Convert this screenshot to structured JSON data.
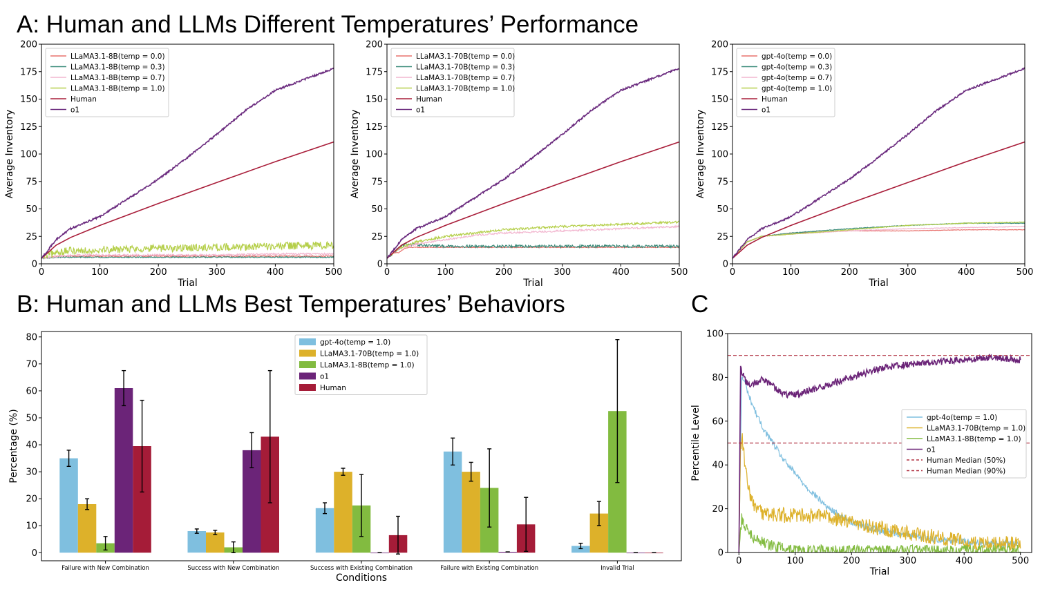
{
  "headings": {
    "a": "A: Human and LLMs Different Temperatures’ Performance",
    "b": "B: Human and LLMs Best Temperatures’ Behaviors",
    "c": "C"
  },
  "chart_data": [
    {
      "type": "line",
      "panel": "A-left",
      "xlabel": "Trial",
      "ylabel": "Average Inventory",
      "xlim": [
        0,
        500
      ],
      "ylim": [
        0,
        200
      ],
      "xticks": [
        0,
        100,
        200,
        300,
        400,
        500
      ],
      "yticks": [
        0,
        25,
        50,
        75,
        100,
        125,
        150,
        175,
        200
      ],
      "legend_position": "top-left",
      "series": [
        {
          "name": "LLaMA3.1-8B(temp = 0.0)",
          "color": "#e8706c",
          "x": [
            0,
            30,
            60,
            100,
            200,
            300,
            400,
            500
          ],
          "y": [
            5,
            7,
            7,
            7,
            7,
            7,
            7,
            7
          ],
          "noise": 0.5
        },
        {
          "name": "LLaMA3.1-8B(temp = 0.3)",
          "color": "#3b8c7a",
          "x": [
            0,
            30,
            60,
            100,
            200,
            300,
            400,
            500
          ],
          "y": [
            5,
            6,
            6,
            6,
            6,
            6,
            6,
            6
          ],
          "noise": 0.5
        },
        {
          "name": "LLaMA3.1-8B(temp = 0.7)",
          "color": "#f2b6cf",
          "x": [
            0,
            30,
            60,
            100,
            200,
            300,
            400,
            500
          ],
          "y": [
            5,
            7,
            8,
            8,
            8,
            8,
            9,
            9
          ],
          "noise": 0.8
        },
        {
          "name": "LLaMA3.1-8B(temp = 1.0)",
          "color": "#b5cf4a",
          "x": [
            0,
            30,
            60,
            100,
            200,
            300,
            400,
            500
          ],
          "y": [
            5,
            11,
            12,
            13,
            14,
            15,
            16,
            17
          ],
          "noise": 3.5
        },
        {
          "name": "Human",
          "color": "#a91e3a",
          "x": [
            0,
            25,
            50,
            100,
            200,
            300,
            400,
            500
          ],
          "y": [
            5,
            17,
            24,
            35,
            55,
            74,
            93,
            111
          ],
          "noise": 0
        },
        {
          "name": "o1",
          "color": "#6a2a7e",
          "x": [
            0,
            25,
            50,
            100,
            150,
            200,
            250,
            300,
            350,
            400,
            450,
            500
          ],
          "y": [
            5,
            22,
            32,
            43,
            60,
            77,
            97,
            118,
            140,
            158,
            168,
            178
          ],
          "noise": 0.8
        }
      ]
    },
    {
      "type": "line",
      "panel": "A-middle",
      "xlabel": "Trial",
      "ylabel": "Average Inventory",
      "xlim": [
        0,
        500
      ],
      "ylim": [
        0,
        200
      ],
      "xticks": [
        0,
        100,
        200,
        300,
        400,
        500
      ],
      "yticks": [
        0,
        25,
        50,
        75,
        100,
        125,
        150,
        175,
        200
      ],
      "legend_position": "top-left",
      "series": [
        {
          "name": "LLaMA3.1-70B(temp = 0.0)",
          "color": "#e8706c",
          "x": [
            0,
            10,
            20,
            30,
            40,
            100,
            200,
            300,
            400,
            500
          ],
          "y": [
            5,
            10,
            10,
            14,
            15,
            15,
            15,
            15,
            15,
            15
          ],
          "noise": 0.3
        },
        {
          "name": "LLaMA3.1-70B(temp = 0.3)",
          "color": "#3b8c7a",
          "x": [
            0,
            20,
            30,
            60,
            100,
            200,
            300,
            400,
            500
          ],
          "y": [
            5,
            14,
            18,
            17,
            16,
            16,
            16,
            16,
            16
          ],
          "noise": 1.2
        },
        {
          "name": "LLaMA3.1-70B(temp = 0.7)",
          "color": "#f2b6cf",
          "x": [
            0,
            20,
            50,
            100,
            150,
            200,
            300,
            400,
            500
          ],
          "y": [
            5,
            14,
            18,
            22,
            26,
            28,
            30,
            32,
            34
          ],
          "noise": 0.8
        },
        {
          "name": "LLaMA3.1-70B(temp = 1.0)",
          "color": "#b5cf4a",
          "x": [
            0,
            20,
            50,
            100,
            150,
            200,
            300,
            400,
            500
          ],
          "y": [
            5,
            14,
            20,
            25,
            28,
            31,
            34,
            36,
            38
          ],
          "noise": 1.0
        },
        {
          "name": "Human",
          "color": "#a91e3a",
          "x": [
            0,
            25,
            50,
            100,
            200,
            300,
            400,
            500
          ],
          "y": [
            5,
            17,
            24,
            35,
            55,
            74,
            93,
            111
          ],
          "noise": 0
        },
        {
          "name": "o1",
          "color": "#6a2a7e",
          "x": [
            0,
            25,
            50,
            100,
            150,
            200,
            250,
            300,
            350,
            400,
            450,
            500
          ],
          "y": [
            5,
            22,
            32,
            43,
            60,
            77,
            97,
            118,
            140,
            158,
            168,
            178
          ],
          "noise": 0.8
        }
      ]
    },
    {
      "type": "line",
      "panel": "A-right",
      "xlabel": "Trial",
      "ylabel": "Average Inventory",
      "xlim": [
        0,
        500
      ],
      "ylim": [
        0,
        200
      ],
      "xticks": [
        0,
        100,
        200,
        300,
        400,
        500
      ],
      "yticks": [
        0,
        25,
        50,
        75,
        100,
        125,
        150,
        175,
        200
      ],
      "legend_position": "top-left",
      "series": [
        {
          "name": "gpt-4o(temp = 0.0)",
          "color": "#e8706c",
          "x": [
            0,
            25,
            50,
            100,
            200,
            300,
            400,
            500
          ],
          "y": [
            5,
            20,
            25,
            28,
            30,
            30,
            31,
            31
          ],
          "noise": 0.2
        },
        {
          "name": "gpt-4o(temp = 0.3)",
          "color": "#3b8c7a",
          "x": [
            0,
            25,
            50,
            100,
            200,
            300,
            400,
            500
          ],
          "y": [
            5,
            20,
            25,
            28,
            32,
            35,
            37,
            37
          ],
          "noise": 0.3
        },
        {
          "name": "gpt-4o(temp = 0.7)",
          "color": "#f2b6cf",
          "x": [
            0,
            25,
            50,
            100,
            200,
            300,
            400,
            500
          ],
          "y": [
            5,
            20,
            25,
            27,
            30,
            32,
            33,
            34
          ],
          "noise": 0.3
        },
        {
          "name": "gpt-4o(temp = 1.0)",
          "color": "#b5cf4a",
          "x": [
            0,
            25,
            50,
            100,
            200,
            300,
            400,
            500
          ],
          "y": [
            5,
            20,
            25,
            27,
            31,
            35,
            37,
            38
          ],
          "noise": 0.3
        },
        {
          "name": "Human",
          "color": "#a91e3a",
          "x": [
            0,
            25,
            50,
            100,
            200,
            300,
            400,
            500
          ],
          "y": [
            5,
            17,
            24,
            35,
            55,
            74,
            93,
            111
          ],
          "noise": 0
        },
        {
          "name": "o1",
          "color": "#6a2a7e",
          "x": [
            0,
            25,
            50,
            100,
            150,
            200,
            250,
            300,
            350,
            400,
            450,
            500
          ],
          "y": [
            5,
            22,
            32,
            43,
            60,
            77,
            97,
            118,
            140,
            158,
            168,
            178
          ],
          "noise": 0.8
        }
      ]
    },
    {
      "type": "bar",
      "panel": "B",
      "xlabel": "Conditions",
      "ylabel": "Percentage (%)",
      "ylim": [
        -3,
        82
      ],
      "yticks": [
        0,
        10,
        20,
        30,
        40,
        50,
        60,
        70,
        80
      ],
      "legend_position": "top-center",
      "categories": [
        "Failure with New Combination",
        "Success with New Combination",
        "Success with Existing Combination",
        "Failure with Existing Combination",
        "Invalid Trial"
      ],
      "series": [
        {
          "name": "gpt-4o(temp = 1.0)",
          "color": "#7fbfdf",
          "values": [
            35,
            8,
            16.5,
            37.5,
            2.5
          ],
          "errors": [
            3,
            0.8,
            2,
            5,
            1
          ]
        },
        {
          "name": "LLaMA3.1-70B(temp = 1.0)",
          "color": "#ddb12a",
          "values": [
            18,
            7.5,
            30,
            30,
            14.5
          ],
          "errors": [
            2,
            0.8,
            1.3,
            3.5,
            4.5
          ]
        },
        {
          "name": "LLaMA3.1-8B(temp = 1.0)",
          "color": "#82bb40",
          "values": [
            3.5,
            2,
            17.5,
            24,
            52.5
          ],
          "errors": [
            2.5,
            2,
            11.5,
            14.5,
            26.5
          ]
        },
        {
          "name": "o1",
          "color": "#6b2478",
          "values": [
            61,
            38,
            0,
            0.3,
            0
          ],
          "errors": [
            6.5,
            6.5,
            0,
            0,
            0
          ]
        },
        {
          "name": "Human",
          "color": "#a51c38",
          "values": [
            39.5,
            43,
            6.5,
            10.5,
            0
          ],
          "errors": [
            17,
            24.5,
            7,
            10,
            0
          ]
        }
      ]
    },
    {
      "type": "line",
      "panel": "C",
      "xlabel": "Trial",
      "ylabel": "Percentile Level",
      "xlim": [
        -20,
        520
      ],
      "ylim": [
        0,
        100
      ],
      "xticks": [
        0,
        100,
        200,
        300,
        400,
        500
      ],
      "yticks": [
        0,
        20,
        40,
        60,
        80,
        100
      ],
      "legend_position": "center-right",
      "series": [
        {
          "name": "gpt-4o(temp = 1.0)",
          "color": "#7fbfdf",
          "style": "solid",
          "x": [
            0,
            5,
            10,
            20,
            40,
            80,
            120,
            160,
            200,
            250,
            300,
            350,
            400,
            450,
            500
          ],
          "y": [
            0,
            80,
            78,
            70,
            58,
            42,
            30,
            20,
            14,
            10,
            8,
            6,
            5,
            4,
            4
          ],
          "noise": 1.5
        },
        {
          "name": "LLaMA3.1-70B(temp = 1.0)",
          "color": "#ddb12a",
          "style": "solid",
          "x": [
            0,
            3,
            6,
            12,
            20,
            40,
            80,
            120,
            160,
            200,
            250,
            300,
            350,
            400,
            450,
            500
          ],
          "y": [
            0,
            48,
            52,
            38,
            24,
            18,
            17,
            17,
            16,
            14,
            11,
            9,
            7,
            5,
            4,
            4
          ],
          "noise": 3.5
        },
        {
          "name": "LLaMA3.1-8B(temp = 1.0)",
          "color": "#82bb40",
          "style": "solid",
          "x": [
            0,
            5,
            10,
            20,
            40,
            60,
            80,
            100,
            150,
            200,
            300,
            400,
            500
          ],
          "y": [
            0,
            16,
            12,
            8,
            5,
            3,
            2,
            1,
            1,
            1,
            1,
            1,
            1
          ],
          "noise": 2.5
        },
        {
          "name": "o1",
          "color": "#6b2478",
          "style": "solid",
          "x": [
            0,
            3,
            6,
            12,
            20,
            40,
            60,
            80,
            100,
            150,
            200,
            250,
            300,
            350,
            400,
            450,
            500
          ],
          "y": [
            0,
            84,
            82,
            78,
            76,
            79,
            76,
            72,
            72,
            76,
            80,
            84,
            86,
            87,
            88,
            89,
            88
          ],
          "noise": 1.5
        },
        {
          "name": "Human Median (50%)",
          "color": "#b03040",
          "style": "dashed",
          "x": [
            -20,
            520
          ],
          "y": [
            50,
            50
          ],
          "noise": 0
        },
        {
          "name": "Human Median (90%)",
          "color": "#b03040",
          "style": "dashed",
          "x": [
            -20,
            520
          ],
          "y": [
            90,
            90
          ],
          "noise": 0
        }
      ]
    }
  ]
}
